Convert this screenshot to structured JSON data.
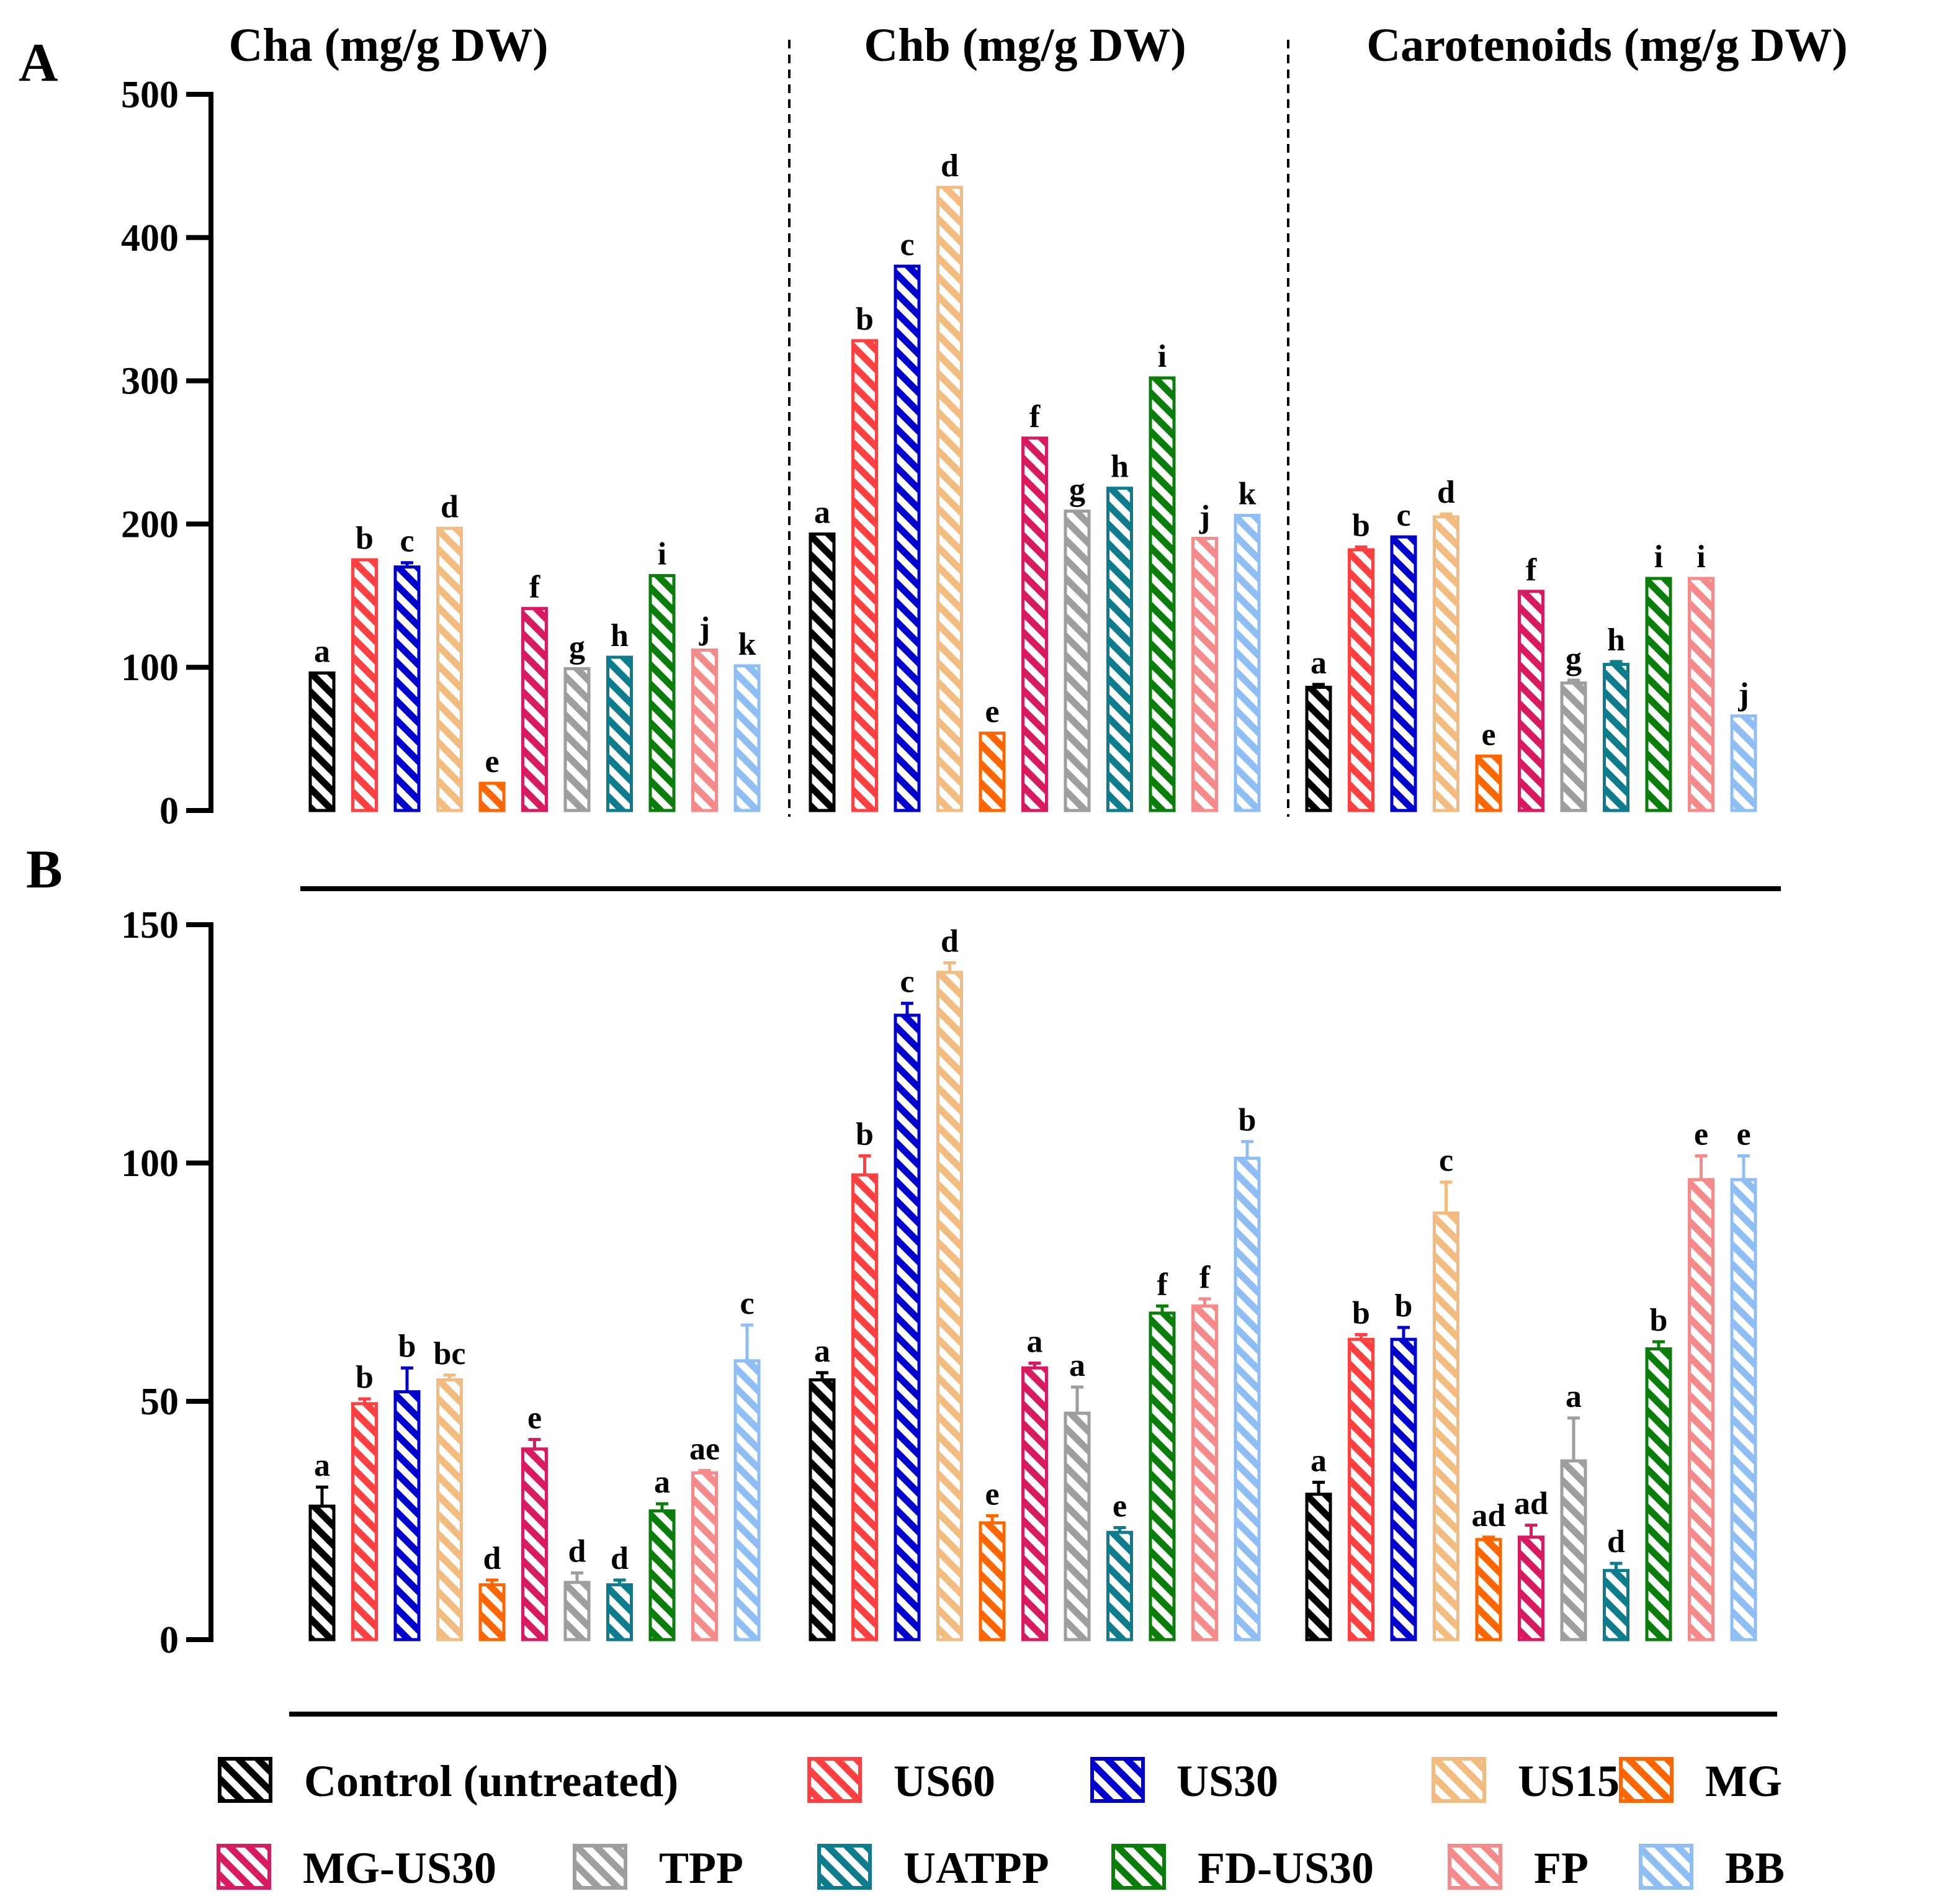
{
  "chart_data": {
    "type": "bar",
    "panels": [
      "A",
      "B"
    ],
    "column_titles": [
      "Cha (mg/g DW)",
      "Chb (mg/g DW)",
      "Carotenoids (mg/g DW)"
    ],
    "series": [
      {
        "name": "Control (untreated)",
        "color": "#000000"
      },
      {
        "name": "US60",
        "color": "#ff4040"
      },
      {
        "name": "US30",
        "color": "#0000cc"
      },
      {
        "name": "US15",
        "color": "#f2bb7f"
      },
      {
        "name": "MG",
        "color": "#ff6600"
      },
      {
        "name": "MG-US30",
        "color": "#d81b60"
      },
      {
        "name": "TPP",
        "color": "#9e9e9e"
      },
      {
        "name": "UATPP",
        "color": "#0e7c8c"
      },
      {
        "name": "FD-US30",
        "color": "#0a7d0a"
      },
      {
        "name": "FP",
        "color": "#f48a8a"
      },
      {
        "name": "BB",
        "color": "#8fbef5"
      }
    ],
    "panel_A": {
      "ylim": [
        0,
        500
      ],
      "yticks": [
        "0",
        "100",
        "200",
        "300",
        "400",
        "500"
      ],
      "groups": [
        {
          "title": "Cha (mg/g DW)",
          "values": [
            96,
            175,
            170,
            197,
            19,
            141,
            99,
            107,
            164,
            112,
            101
          ],
          "errors": [
            0,
            0,
            3,
            0,
            0,
            0,
            0,
            0,
            0,
            0,
            0
          ],
          "letters": [
            "a",
            "b",
            "c",
            "d",
            "e",
            "f",
            "g",
            "h",
            "i",
            "j",
            "k"
          ]
        },
        {
          "title": "Chb (mg/g DW)",
          "values": [
            193,
            328,
            380,
            435,
            54,
            260,
            209,
            225,
            302,
            190,
            206
          ],
          "errors": [
            0,
            0,
            0,
            0,
            0,
            0,
            0,
            0,
            0,
            0,
            0
          ],
          "letters": [
            "a",
            "b",
            "c",
            "d",
            "e",
            "f",
            "g",
            "h",
            "i",
            "j",
            "k"
          ]
        },
        {
          "title": "Carotenoids (mg/g DW)",
          "values": [
            86,
            182,
            191,
            205,
            38,
            153,
            89,
            102,
            162,
            162,
            66
          ],
          "errors": [
            2,
            2,
            0,
            2,
            0,
            0,
            2,
            2,
            0,
            0,
            0
          ],
          "letters": [
            "a",
            "b",
            "c",
            "d",
            "e",
            "f",
            "g",
            "h",
            "i",
            "i",
            "j"
          ]
        }
      ]
    },
    "panel_B": {
      "ylim": [
        0,
        150
      ],
      "yticks": [
        "0",
        "50",
        "100",
        "150"
      ],
      "groups": [
        {
          "title": "Cha (mg/g DW)",
          "values": [
            28,
            49.5,
            52,
            54.5,
            11.5,
            40,
            12,
            11.5,
            27,
            35,
            58.5
          ],
          "errors": [
            4,
            1,
            5,
            1,
            1,
            2,
            2,
            1,
            1.5,
            0.5,
            7.5
          ],
          "letters": [
            "a",
            "b",
            "b",
            "bc",
            "d",
            "e",
            "d",
            "d",
            "a",
            "ae",
            "c"
          ]
        },
        {
          "title": "Chb (mg/g DW)",
          "values": [
            54.5,
            97.5,
            131,
            140,
            24.5,
            57,
            47.5,
            22.5,
            68.5,
            70,
            101
          ],
          "errors": [
            1.5,
            4,
            2.5,
            2,
            1.5,
            1,
            5.5,
            1,
            1.5,
            1.5,
            3.5
          ],
          "letters": [
            "a",
            "b",
            "c",
            "d",
            "e",
            "a",
            "a",
            "e",
            "f",
            "f",
            "b"
          ]
        },
        {
          "title": "Carotenoids (mg/g DW)",
          "values": [
            30.5,
            63,
            63,
            89.5,
            21,
            21.5,
            37.5,
            14.5,
            61,
            96.5,
            96.5
          ],
          "errors": [
            2.5,
            1,
            2.5,
            6.5,
            0.5,
            2.5,
            9,
            1.5,
            1.5,
            5,
            5
          ],
          "letters": [
            "a",
            "b",
            "b",
            "c",
            "ad",
            "ad",
            "a",
            "d",
            "b",
            "e",
            "e"
          ]
        }
      ]
    }
  }
}
